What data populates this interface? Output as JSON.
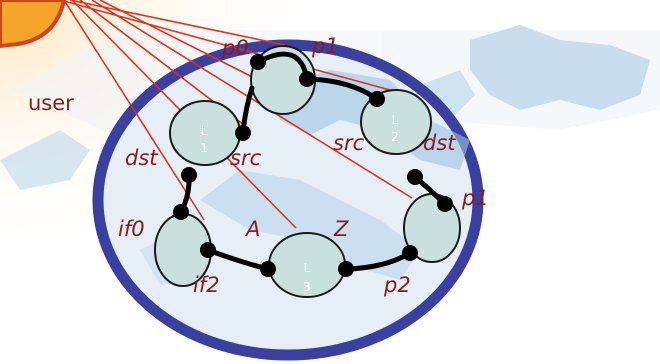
{
  "user_label": "user",
  "nodes": [
    {
      "id": "L1",
      "letter": "L",
      "digit": "1"
    },
    {
      "id": "L2",
      "letter": "L",
      "digit": "2"
    },
    {
      "id": "L3",
      "letter": "L",
      "digit": "3"
    }
  ],
  "port_labels": {
    "p0": "p0",
    "p1_top": "p1",
    "src_left": "src",
    "src_right": "src",
    "dst_left": "dst",
    "dst_right": "dst",
    "p1_right": "p1",
    "if0": "if0",
    "if2": "if2",
    "A": "A",
    "Z": "Z",
    "p2": "p2"
  },
  "colors": {
    "ring": "#3a3fa0",
    "ring_fill": "#dfeaf3",
    "device_fill": "#c9e0df",
    "connection": "#e0301e",
    "link": "#000000",
    "label": "#8b1a1a",
    "user_badge": "#f4a52a"
  }
}
